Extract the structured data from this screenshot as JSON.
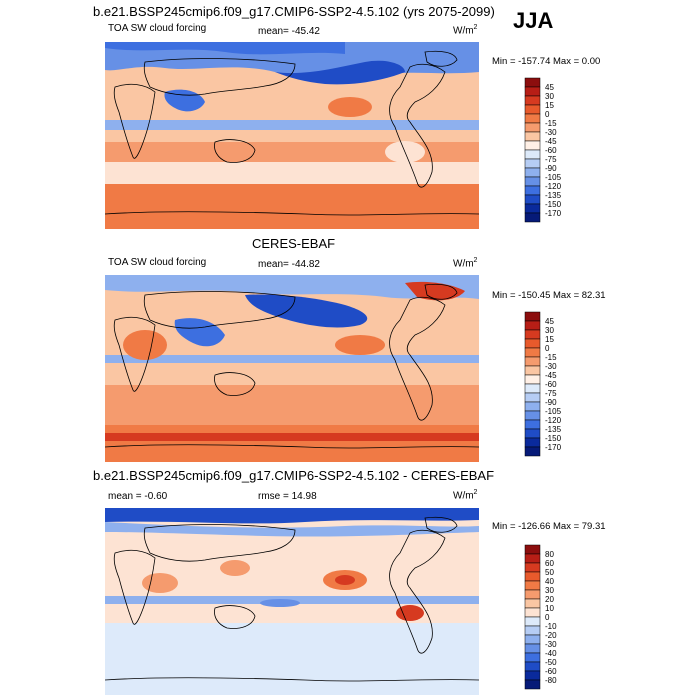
{
  "season": "JJA",
  "colors": {
    "deep_blue": "#0a2a9c",
    "mid_blue": "#3d6fe0",
    "light_blue": "#c8dcf7",
    "light_orange": "#fac6a3",
    "orange": "#f07a45",
    "dark_red": "#8c0e0e"
  },
  "panels": [
    {
      "title": "b.e21.BSSP245cmip6.f09_g17.CMIP6-SSP2-4.5.102 (yrs 2075-2099)",
      "left_label": "TOA SW cloud forcing",
      "center_label": "mean= -45.42",
      "units": "W/m",
      "units_sup": "2",
      "minmax": "Min = -157.74 Max =   0.00",
      "colorbar": [
        "45",
        "30",
        "15",
        "0",
        "-15",
        "-30",
        "-45",
        "-60",
        "-75",
        "-90",
        "-105",
        "-120",
        "-135",
        "-150",
        "-170"
      ],
      "colorbar_colors": [
        "#8c0e0e",
        "#b71e16",
        "#d63a20",
        "#e85a2c",
        "#f07a45",
        "#f59b6e",
        "#fac6a3",
        "#fff0e6",
        "#ddeafa",
        "#b6cdf4",
        "#8eb0ee",
        "#6690e6",
        "#3d6fe0",
        "#1f4cc6",
        "#0a2a9c",
        "#061a78"
      ]
    },
    {
      "title": "CERES-EBAF",
      "left_label": "TOA SW cloud forcing",
      "center_label": "mean= -44.82",
      "units": "W/m",
      "units_sup": "2",
      "minmax": "Min = -150.45 Max =  82.31",
      "colorbar": [
        "45",
        "30",
        "15",
        "0",
        "-15",
        "-30",
        "-45",
        "-60",
        "-75",
        "-90",
        "-105",
        "-120",
        "-135",
        "-150",
        "-170"
      ],
      "colorbar_colors": [
        "#8c0e0e",
        "#b71e16",
        "#d63a20",
        "#e85a2c",
        "#f07a45",
        "#f59b6e",
        "#fac6a3",
        "#fff0e6",
        "#ddeafa",
        "#b6cdf4",
        "#8eb0ee",
        "#6690e6",
        "#3d6fe0",
        "#1f4cc6",
        "#0a2a9c",
        "#061a78"
      ]
    },
    {
      "title": "b.e21.BSSP245cmip6.f09_g17.CMIP6-SSP2-4.5.102 - CERES-EBAF",
      "left_label": "mean =  -0.60",
      "center_label": "rmse =  14.98",
      "units": "W/m",
      "units_sup": "2",
      "minmax": "Min = -126.66 Max =  79.31",
      "colorbar": [
        "80",
        "60",
        "50",
        "40",
        "30",
        "20",
        "10",
        "0",
        "-10",
        "-20",
        "-30",
        "-40",
        "-50",
        "-60",
        "-80"
      ],
      "colorbar_colors": [
        "#8c0e0e",
        "#b71e16",
        "#d63a20",
        "#e85a2c",
        "#f07a45",
        "#f59b6e",
        "#fac6a3",
        "#fde3d3",
        "#ddeafa",
        "#b6cdf4",
        "#8eb0ee",
        "#6690e6",
        "#3d6fe0",
        "#1f4cc6",
        "#0a2a9c",
        "#061a78"
      ]
    }
  ]
}
